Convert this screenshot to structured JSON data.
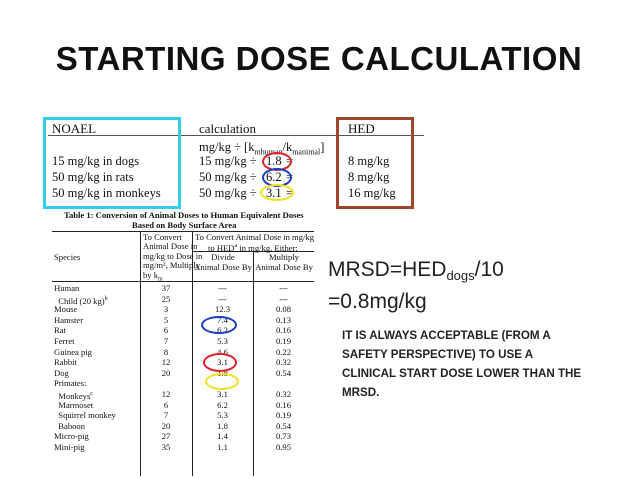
{
  "title": "STARTING DOSE CALCULATION",
  "calc": {
    "headers": [
      "NOAEL",
      "calculation",
      "HED"
    ],
    "formula": "mg/kg ÷ [k",
    "formula_sub1": "mhuman",
    "formula_mid": "/k",
    "formula_sub2": "manimal",
    "formula_end": "]",
    "rows": [
      {
        "noael": "15 mg/kg in dogs",
        "calc_prefix": "15 mg/kg ÷",
        "factor": "1.8",
        "eq": "=",
        "hed": "8 mg/kg"
      },
      {
        "noael": "50 mg/kg in rats",
        "calc_prefix": "50 mg/kg ÷",
        "factor": "6.2",
        "eq": "=",
        "hed": "8 mg/kg"
      },
      {
        "noael": "50 mg/kg in monkeys",
        "calc_prefix": "50 mg/kg ÷",
        "factor": "3.1",
        "eq": "=",
        "hed": "16 mg/kg"
      }
    ]
  },
  "table": {
    "title_line1": "Table 1:  Conversion of Animal Doses to Human Equivalent Doses",
    "title_line2": "Based on Body Surface Area",
    "header": {
      "species": "Species",
      "col1": [
        "To Convert",
        "Animal Dose in",
        "mg/kg to Dose in",
        "mg/m², Multiply",
        "by k"
      ],
      "col1_sub": "m",
      "group": [
        "To Convert Animal Dose in mg/kg",
        "to HED",
        " in mg/kg, Either:"
      ],
      "group_sup": "a",
      "col2": [
        "Divide",
        "Animal Dose By"
      ],
      "col3": [
        "Multiply",
        "Animal Dose By"
      ]
    },
    "rows": [
      {
        "species": "Human",
        "k": "37",
        "div": "---",
        "mult": "---"
      },
      {
        "species": "  Child (20 kg)",
        "sup": "b",
        "k": "25",
        "div": "---",
        "mult": "---"
      },
      {
        "species": "Mouse",
        "k": "3",
        "div": "12.3",
        "mult": "0.08"
      },
      {
        "species": "Hamster",
        "k": "5",
        "div": "7.4",
        "mult": "0.13"
      },
      {
        "species": "Rat",
        "k": "6",
        "div": "6.2",
        "mult": "0.16"
      },
      {
        "species": "Ferret",
        "k": "7",
        "div": "5.3",
        "mult": "0.19"
      },
      {
        "species": "Guinea pig",
        "k": "8",
        "div": "4.6",
        "mult": "0.22"
      },
      {
        "species": "Rabbit",
        "k": "12",
        "div": "3.1",
        "mult": "0.32"
      },
      {
        "species": "Dog",
        "k": "20",
        "div": "1.8",
        "mult": "0.54"
      },
      {
        "species": "Primates:",
        "k": "",
        "div": "",
        "mult": ""
      },
      {
        "species": "  Monkeys",
        "sup": "c",
        "k": "12",
        "div": "3.1",
        "mult": "0.32"
      },
      {
        "species": "  Marmoset",
        "k": "6",
        "div": "6.2",
        "mult": "0.16"
      },
      {
        "species": "  Squirrel monkey",
        "k": "7",
        "div": "5.3",
        "mult": "0.19"
      },
      {
        "species": "  Baboon",
        "k": "20",
        "div": "1.8",
        "mult": "0.54"
      },
      {
        "species": "Micro-pig",
        "k": "27",
        "div": "1.4",
        "mult": "0.73"
      },
      {
        "species": "Mini-pig",
        "k": "35",
        "div": "1.1",
        "mult": "0.95"
      }
    ]
  },
  "mrsd": {
    "line1_prefix": "MRSD=HED",
    "line1_sub": "dogs",
    "line1_suffix": "/10",
    "line2": "=0.8mg/kg"
  },
  "note": "IT IS ALWAYS ACCEPTABLE (FROM A SAFETY PERSPECTIVE) TO USE A CLINICAL START DOSE LOWER THAN THE MRSD.",
  "colors": {
    "cyan_box": "#2fd0e8",
    "brown_box": "#a0462a",
    "red_oval": "#e0202a",
    "blue_oval": "#1c3cc8",
    "yellow_oval": "#f0e020"
  }
}
